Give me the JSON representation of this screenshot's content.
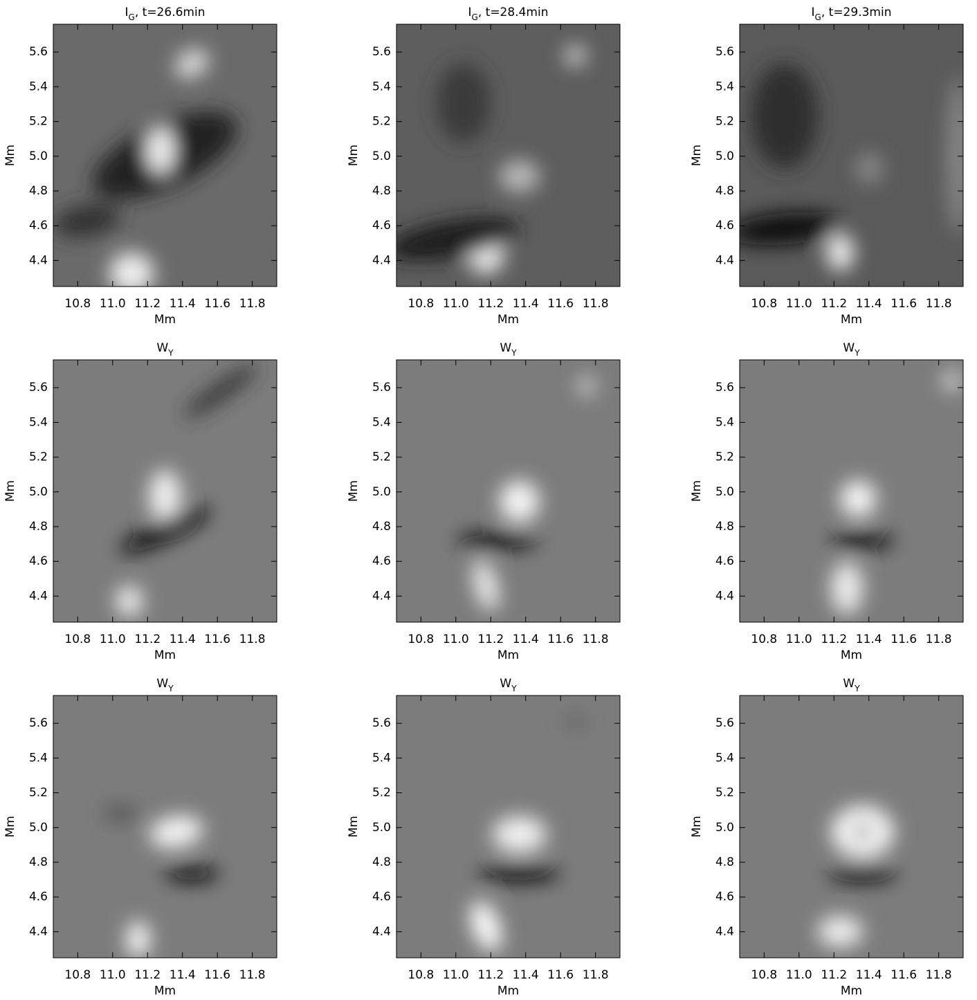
{
  "chart_data": [
    {
      "type": "image",
      "title": [
        "I",
        "G",
        ", t=26.6min"
      ],
      "xlabel": "Mm",
      "ylabel": "Mm",
      "xlim": [
        10.66,
        11.94
      ],
      "ylim": [
        4.25,
        5.76
      ],
      "xticks": [
        10.8,
        {
          "value": 11,
          "label": "11.0"
        },
        11.2,
        11.4,
        11.6,
        11.8
      ],
      "yticks": [
        4.4,
        4.6,
        4.8,
        {
          "value": 5,
          "label": "5.0"
        },
        5.2,
        5.4,
        5.6
      ]
    },
    {
      "type": "image",
      "title": [
        "I",
        "G",
        ", t=28.4min"
      ],
      "xlabel": "Mm",
      "ylabel": "Mm",
      "xlim": [
        10.66,
        11.94
      ],
      "ylim": [
        4.25,
        5.76
      ],
      "xticks": [
        10.8,
        {
          "value": 11,
          "label": "11.0"
        },
        11.2,
        11.4,
        11.6,
        11.8
      ],
      "yticks": [
        4.4,
        4.6,
        4.8,
        {
          "value": 5,
          "label": "5.0"
        },
        5.2,
        5.4,
        5.6
      ]
    },
    {
      "type": "image",
      "title": [
        "I",
        "G",
        ", t=29.3min"
      ],
      "xlabel": "Mm",
      "ylabel": "Mm",
      "xlim": [
        10.66,
        11.94
      ],
      "ylim": [
        4.25,
        5.76
      ],
      "xticks": [
        10.8,
        {
          "value": 11,
          "label": "11.0"
        },
        11.2,
        11.4,
        11.6,
        11.8
      ],
      "yticks": [
        4.4,
        4.6,
        4.8,
        {
          "value": 5,
          "label": "5.0"
        },
        5.2,
        5.4,
        5.6
      ]
    },
    {
      "type": "image",
      "title": [
        "W",
        "Y"
      ],
      "xlabel": "Mm",
      "ylabel": "Mm",
      "xlim": [
        10.66,
        11.94
      ],
      "ylim": [
        4.25,
        5.76
      ],
      "xticks": [
        10.8,
        {
          "value": 11,
          "label": "11.0"
        },
        11.2,
        11.4,
        11.6,
        11.8
      ],
      "yticks": [
        4.4,
        4.6,
        4.8,
        {
          "value": 5,
          "label": "5.0"
        },
        5.2,
        5.4,
        5.6
      ]
    },
    {
      "type": "image",
      "title": [
        "W",
        "Y"
      ],
      "xlabel": "Mm",
      "ylabel": "Mm",
      "xlim": [
        10.66,
        11.94
      ],
      "ylim": [
        4.25,
        5.76
      ],
      "xticks": [
        10.8,
        {
          "value": 11,
          "label": "11.0"
        },
        11.2,
        11.4,
        11.6,
        11.8
      ],
      "yticks": [
        4.4,
        4.6,
        4.8,
        {
          "value": 5,
          "label": "5.0"
        },
        5.2,
        5.4,
        5.6
      ]
    },
    {
      "type": "image",
      "title": [
        "W",
        "Y"
      ],
      "xlabel": "Mm",
      "ylabel": "Mm",
      "xlim": [
        10.66,
        11.94
      ],
      "ylim": [
        4.25,
        5.76
      ],
      "xticks": [
        10.8,
        {
          "value": 11,
          "label": "11.0"
        },
        11.2,
        11.4,
        11.6,
        11.8
      ],
      "yticks": [
        4.4,
        4.6,
        4.8,
        {
          "value": 5,
          "label": "5.0"
        },
        5.2,
        5.4,
        5.6
      ]
    },
    {
      "type": "image",
      "title": [
        "W",
        "Y"
      ],
      "xlabel": "Mm",
      "ylabel": "Mm",
      "xlim": [
        10.66,
        11.94
      ],
      "ylim": [
        4.25,
        5.76
      ],
      "xticks": [
        10.8,
        {
          "value": 11,
          "label": "11.0"
        },
        11.2,
        11.4,
        11.6,
        11.8
      ],
      "yticks": [
        4.4,
        4.6,
        4.8,
        {
          "value": 5,
          "label": "5.0"
        },
        5.2,
        5.4,
        5.6
      ]
    },
    {
      "type": "image",
      "title": [
        "W",
        "Y"
      ],
      "xlabel": "Mm",
      "ylabel": "Mm",
      "xlim": [
        10.66,
        11.94
      ],
      "ylim": [
        4.25,
        5.76
      ],
      "xticks": [
        10.8,
        {
          "value": 11,
          "label": "11.0"
        },
        11.2,
        11.4,
        11.6,
        11.8
      ],
      "yticks": [
        4.4,
        4.6,
        4.8,
        {
          "value": 5,
          "label": "5.0"
        },
        5.2,
        5.4,
        5.6
      ]
    },
    {
      "type": "image",
      "title": [
        "W",
        "Y"
      ],
      "xlabel": "Mm",
      "ylabel": "Mm",
      "xlim": [
        10.66,
        11.94
      ],
      "ylim": [
        4.25,
        5.76
      ],
      "xticks": [
        10.8,
        {
          "value": 11,
          "label": "11.0"
        },
        11.2,
        11.4,
        11.6,
        11.8
      ],
      "yticks": [
        4.4,
        4.6,
        4.8,
        {
          "value": 5,
          "label": "5.0"
        },
        5.2,
        5.4,
        5.6
      ]
    }
  ]
}
